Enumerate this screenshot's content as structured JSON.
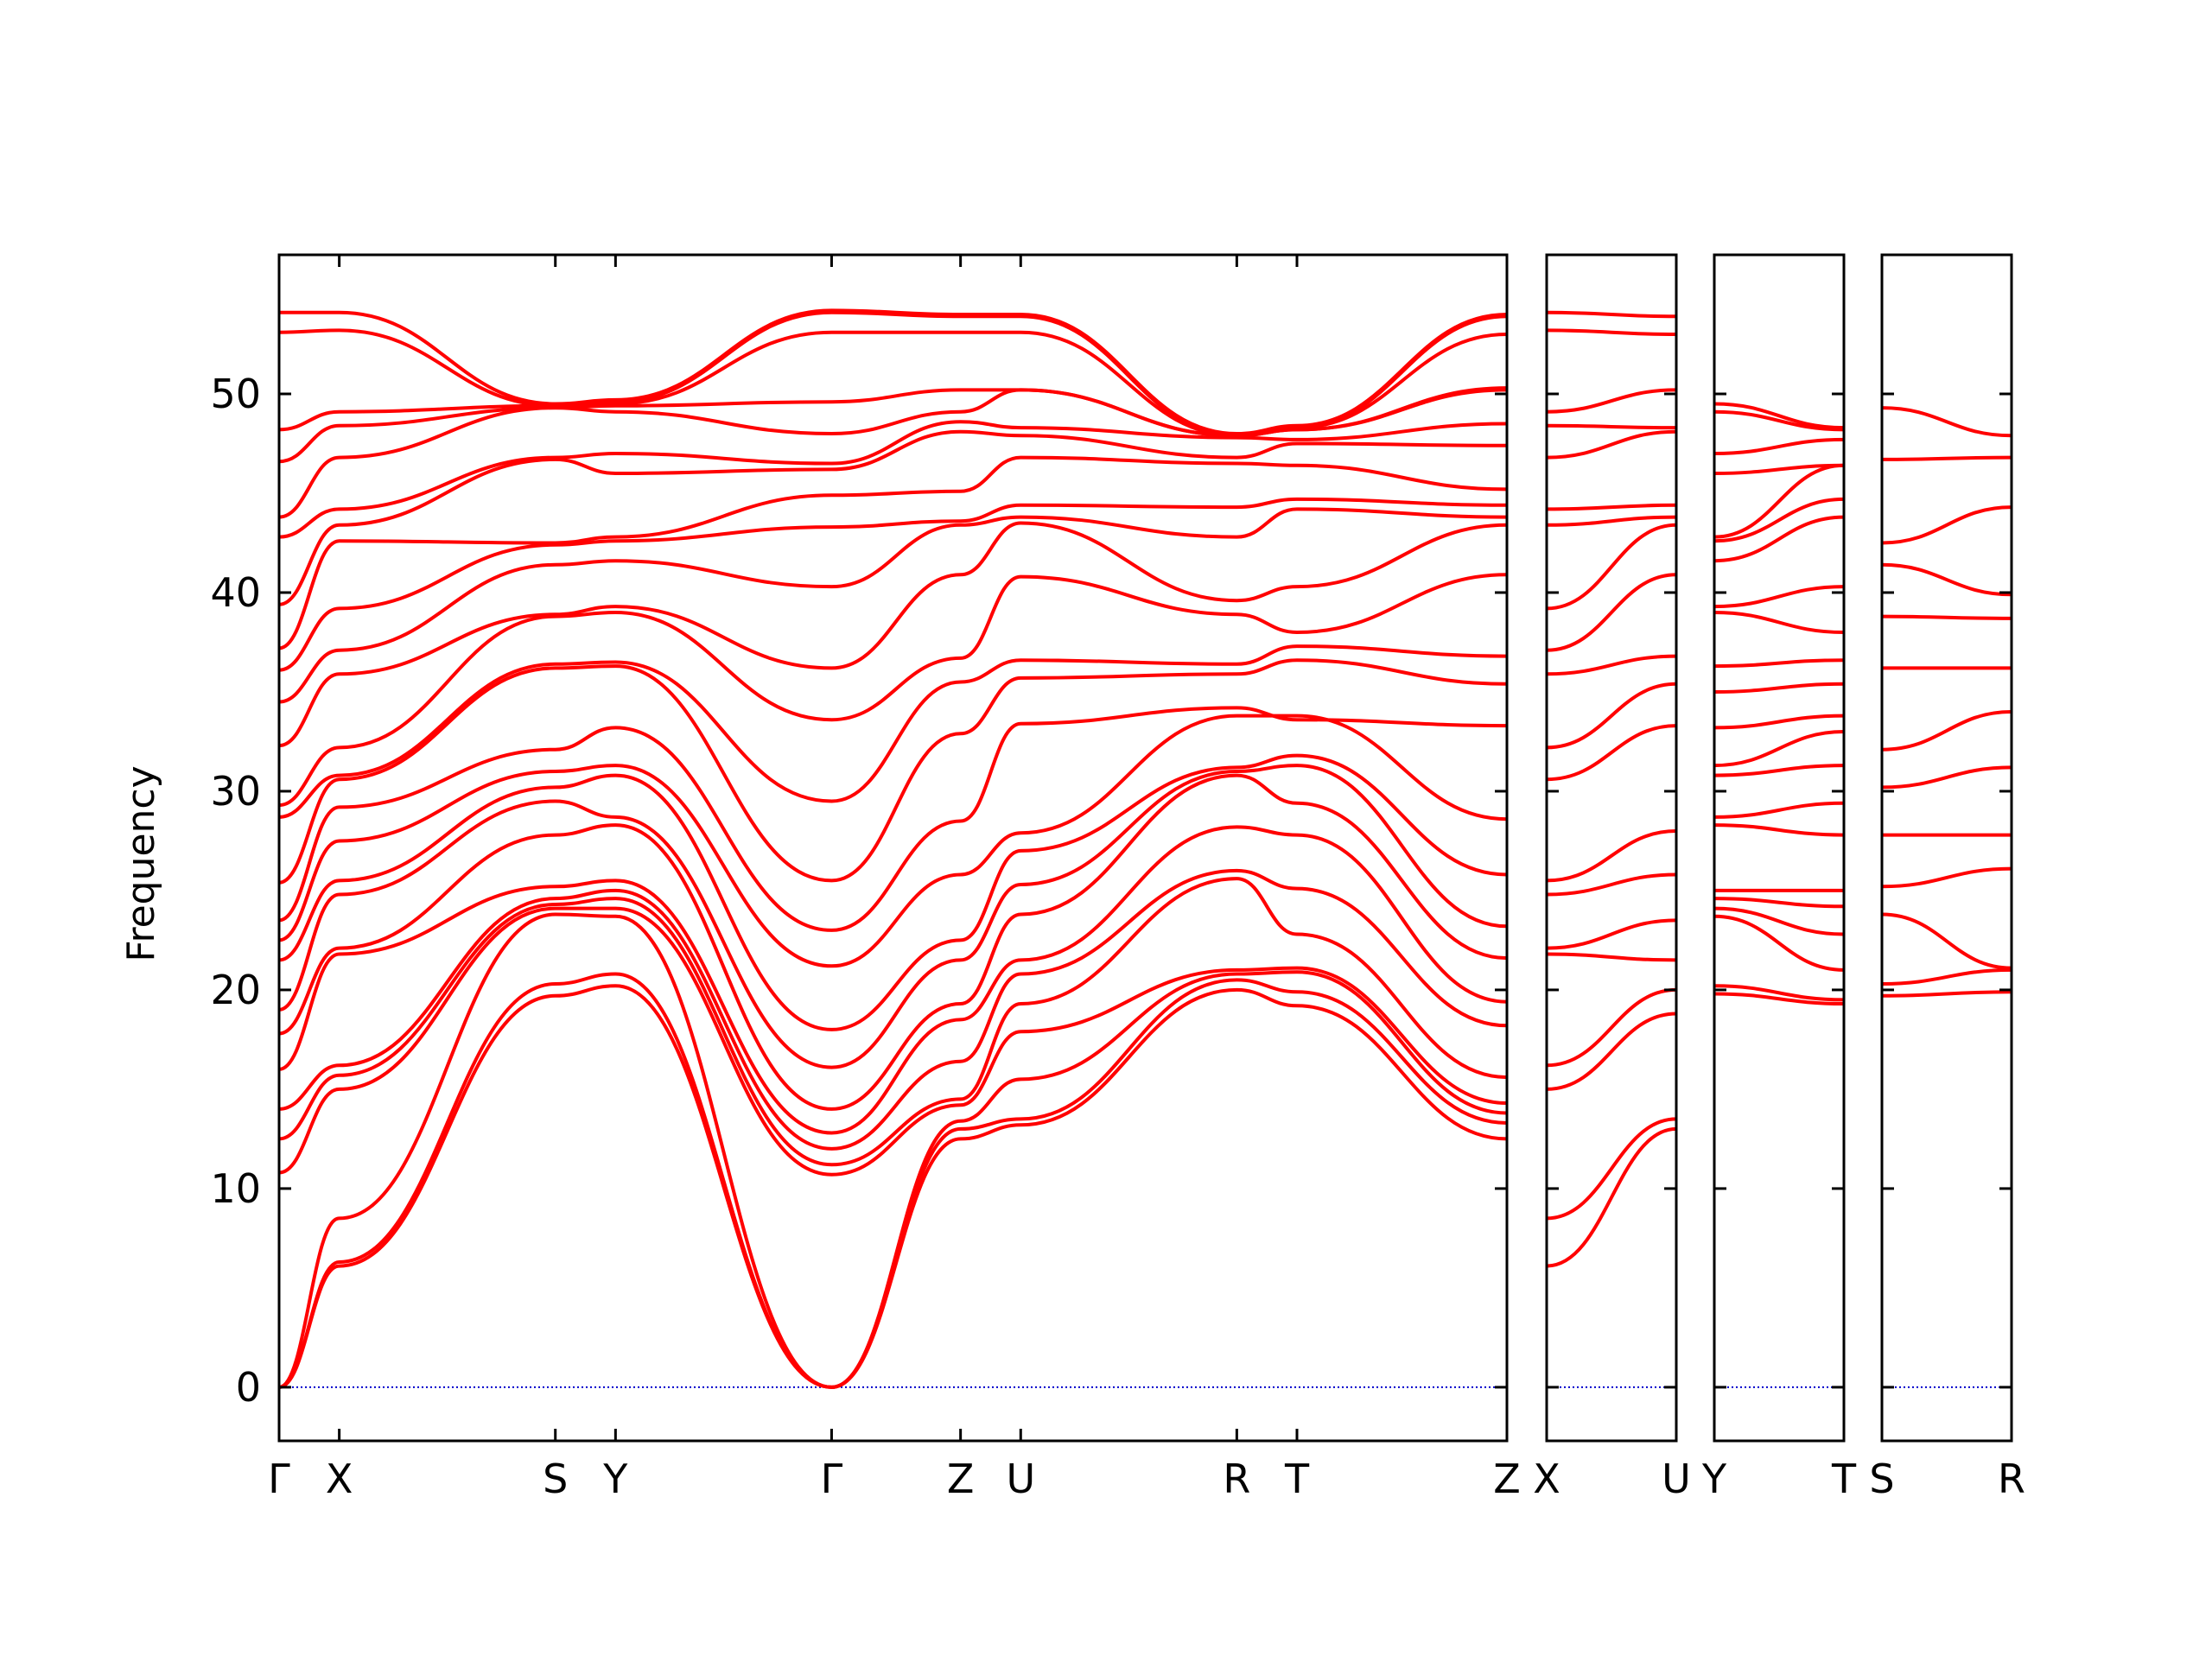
{
  "chart_data": {
    "type": "line",
    "ylabel": "Frequency",
    "ylim": [
      -2.7,
      57.0
    ],
    "yticks": [
      0,
      10,
      20,
      30,
      40,
      50
    ],
    "band_color": "#ff0000",
    "zero_line_color": "#0000cc",
    "segments": [
      {
        "labels": [
          "Γ",
          "X",
          "S",
          "Y",
          "Γ",
          "Z",
          "U",
          "R",
          "T",
          "Z"
        ],
        "positions": [
          0,
          0.049,
          0.225,
          0.274,
          0.45,
          0.555,
          0.604,
          0.78,
          0.829,
          1.0
        ],
        "bands": [
          {
            "values": [
              0,
              6.1,
              19.7,
              20.2,
              0,
              12.5,
              13.2,
              20.0,
              19.2,
              12.5
            ]
          },
          {
            "values": [
              0,
              6.3,
              20.3,
              20.8,
              0,
              13.0,
              13.5,
              20.5,
              19.9,
              13.3
            ]
          },
          {
            "values": [
              0,
              8.5,
              23.8,
              23.7,
              0,
              13.4,
              15.5,
              20.8,
              20.9,
              13.8
            ]
          },
          {
            "values": [
              10.8,
              15.0,
              24.1,
              24.1,
              10.7,
              14.2,
              17.9,
              21.0,
              21.1,
              14.3
            ]
          },
          {
            "values": [
              12.5,
              15.7,
              24.3,
              24.6,
              11.2,
              14.5,
              19.3,
              25.6,
              22.8,
              15.6
            ]
          },
          {
            "values": [
              14.0,
              16.2,
              24.6,
              25.0,
              12.0,
              16.4,
              20.8,
              26.0,
              25.1,
              18.2
            ]
          },
          {
            "values": [
              16.0,
              21.8,
              25.2,
              25.5,
              12.8,
              18.5,
              21.5,
              28.2,
              27.8,
              19.4
            ]
          },
          {
            "values": [
              17.8,
              22.1,
              27.8,
              28.3,
              14.0,
              19.3,
              23.8,
              30.8,
              29.4,
              21.6
            ]
          },
          {
            "values": [
              19.0,
              24.8,
              29.5,
              28.7,
              16.1,
              21.5,
              25.3,
              31.0,
              31.3,
              23.2
            ]
          },
          {
            "values": [
              21.5,
              25.5,
              30.2,
              30.8,
              18.0,
              22.5,
              27.0,
              31.2,
              31.8,
              25.8
            ]
          },
          {
            "values": [
              22.5,
              27.5,
              31.0,
              31.3,
              21.2,
              25.8,
              27.9,
              33.8,
              33.8,
              28.6
            ]
          },
          {
            "values": [
              23.5,
              29.2,
              32.1,
              33.2,
              23.0,
              28.5,
              33.4,
              34.2,
              33.6,
              33.3
            ]
          },
          {
            "values": [
              25.4,
              30.6,
              36.2,
              36.3,
              25.5,
              32.9,
              35.7,
              35.9,
              36.6,
              35.4
            ]
          },
          {
            "values": [
              28.7,
              30.8,
              36.4,
              36.5,
              29.5,
              35.5,
              36.6,
              36.4,
              37.3,
              36.8
            ]
          },
          {
            "values": [
              29.3,
              32.2,
              38.8,
              39.0,
              33.6,
              36.7,
              40.8,
              38.9,
              38.0,
              40.9
            ]
          },
          {
            "values": [
              32.3,
              35.9,
              38.9,
              39.3,
              36.2,
              40.9,
              43.5,
              39.6,
              40.3,
              43.4
            ]
          },
          {
            "values": [
              34.5,
              37.1,
              41.4,
              41.6,
              40.3,
              43.4,
              43.8,
              42.8,
              44.2,
              43.8
            ]
          },
          {
            "values": [
              36.1,
              39.2,
              42.4,
              42.6,
              43.3,
              43.6,
              44.4,
              44.3,
              44.7,
              44.4
            ]
          },
          {
            "values": [
              37.2,
              42.6,
              42.5,
              42.8,
              44.9,
              45.1,
              46.8,
              46.5,
              46.4,
              45.2
            ]
          },
          {
            "values": [
              39.4,
              43.4,
              46.7,
              46.0,
              46.2,
              48.1,
              47.9,
              46.8,
              47.5,
              47.4
            ]
          },
          {
            "values": [
              42.8,
              44.2,
              46.8,
              47.0,
              46.5,
              48.6,
              48.3,
              47.8,
              47.7,
              48.5
            ]
          },
          {
            "values": [
              43.8,
              46.8,
              49.3,
              49.1,
              48.0,
              49.1,
              50.2,
              47.9,
              48.2,
              50.2
            ]
          },
          {
            "values": [
              46.6,
              48.4,
              49.3,
              49.4,
              49.6,
              50.2,
              50.2,
              47.9,
              48.2,
              50.3
            ]
          },
          {
            "values": [
              48.2,
              49.1,
              49.4,
              49.5,
              53.1,
              53.1,
              53.1,
              47.9,
              48.3,
              53.0
            ]
          },
          {
            "values": [
              53.1,
              53.2,
              49.4,
              49.6,
              54.1,
              53.9,
              53.9,
              47.9,
              48.3,
              53.9
            ]
          },
          {
            "values": [
              54.1,
              54.1,
              49.5,
              49.7,
              54.2,
              54.0,
              54.0,
              48.0,
              48.4,
              54.0
            ]
          }
        ]
      },
      {
        "labels": [
          "X",
          "U"
        ],
        "positions": [
          0,
          1.0
        ],
        "bands": [
          {
            "values": [
              6.1,
              13.0
            ]
          },
          {
            "values": [
              8.5,
              13.5
            ]
          },
          {
            "values": [
              15.0,
              18.8
            ]
          },
          {
            "values": [
              16.2,
              20.0
            ]
          },
          {
            "values": [
              21.8,
              21.5
            ]
          },
          {
            "values": [
              22.1,
              23.5
            ]
          },
          {
            "values": [
              24.8,
              25.8
            ]
          },
          {
            "values": [
              25.5,
              28.0
            ]
          },
          {
            "values": [
              30.6,
              33.3
            ]
          },
          {
            "values": [
              32.2,
              35.4
            ]
          },
          {
            "values": [
              35.9,
              36.8
            ]
          },
          {
            "values": [
              37.1,
              40.9
            ]
          },
          {
            "values": [
              39.2,
              43.4
            ]
          },
          {
            "values": [
              43.4,
              43.8
            ]
          },
          {
            "values": [
              44.2,
              44.4
            ]
          },
          {
            "values": [
              46.8,
              48.1
            ]
          },
          {
            "values": [
              48.4,
              48.3
            ]
          },
          {
            "values": [
              49.1,
              50.2
            ]
          },
          {
            "values": [
              53.2,
              53.0
            ]
          },
          {
            "values": [
              54.1,
              53.9
            ]
          }
        ]
      },
      {
        "labels": [
          "Y",
          "T"
        ],
        "positions": [
          0,
          1.0
        ],
        "bands": [
          {
            "values": [
              19.8,
              19.3
            ]
          },
          {
            "values": [
              20.2,
              19.5
            ]
          },
          {
            "values": [
              23.7,
              21.0
            ]
          },
          {
            "values": [
              24.1,
              22.8
            ]
          },
          {
            "values": [
              24.6,
              24.2
            ]
          },
          {
            "values": [
              25.0,
              25.0
            ]
          },
          {
            "values": [
              28.3,
              27.8
            ]
          },
          {
            "values": [
              28.7,
              29.4
            ]
          },
          {
            "values": [
              30.8,
              31.3
            ]
          },
          {
            "values": [
              31.3,
              33.0
            ]
          },
          {
            "values": [
              33.2,
              33.8
            ]
          },
          {
            "values": [
              35.0,
              35.4
            ]
          },
          {
            "values": [
              36.3,
              36.6
            ]
          },
          {
            "values": [
              39.0,
              38.0
            ]
          },
          {
            "values": [
              39.3,
              40.3
            ]
          },
          {
            "values": [
              41.6,
              43.8
            ]
          },
          {
            "values": [
              42.6,
              44.7
            ]
          },
          {
            "values": [
              42.8,
              46.4
            ]
          },
          {
            "values": [
              46.0,
              46.4
            ]
          },
          {
            "values": [
              47.0,
              47.7
            ]
          },
          {
            "values": [
              49.1,
              48.2
            ]
          },
          {
            "values": [
              49.5,
              48.3
            ]
          }
        ]
      },
      {
        "labels": [
          "S",
          "R"
        ],
        "positions": [
          0,
          1.0
        ],
        "bands": [
          {
            "values": [
              19.7,
              19.9
            ]
          },
          {
            "values": [
              20.3,
              21.0
            ]
          },
          {
            "values": [
              23.8,
              21.1
            ]
          },
          {
            "values": [
              25.2,
              26.1
            ]
          },
          {
            "values": [
              27.8,
              27.8
            ]
          },
          {
            "values": [
              30.2,
              31.2
            ]
          },
          {
            "values": [
              32.1,
              34.0
            ]
          },
          {
            "values": [
              36.2,
              36.2
            ]
          },
          {
            "values": [
              38.8,
              38.7
            ]
          },
          {
            "values": [
              41.4,
              39.9
            ]
          },
          {
            "values": [
              42.5,
              44.3
            ]
          },
          {
            "values": [
              46.7,
              46.8
            ]
          },
          {
            "values": [
              49.3,
              47.9
            ]
          }
        ]
      }
    ]
  }
}
